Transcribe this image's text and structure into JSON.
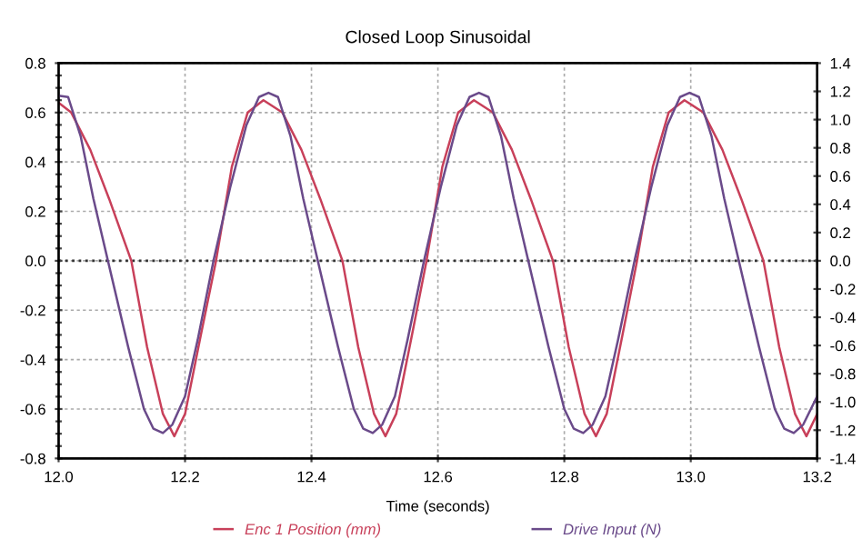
{
  "chart_data": {
    "type": "line",
    "title": "Closed Loop Sinusoidal",
    "xlabel": "Time (seconds)",
    "xlim": [
      12.0,
      13.2
    ],
    "xticks": [
      {
        "value": 12,
        "label": "12.0"
      },
      12.2,
      12.4,
      12.6,
      12.8,
      {
        "value": 13,
        "label": "13.0"
      },
      13.2
    ],
    "ylim": [
      -0.8,
      0.8
    ],
    "yticks": [
      -0.8,
      {
        "value": -0.75,
        "label": null
      },
      {
        "value": -0.7,
        "label": null
      },
      {
        "value": -0.65,
        "label": null
      },
      -0.6,
      {
        "value": -0.55,
        "label": null
      },
      {
        "value": -0.5,
        "label": null
      },
      {
        "value": -0.45,
        "label": null
      },
      -0.4,
      {
        "value": -0.35,
        "label": null
      },
      {
        "value": -0.3,
        "label": null
      },
      {
        "value": -0.25,
        "label": null
      },
      -0.2,
      {
        "value": -0.15,
        "label": null
      },
      {
        "value": -0.1,
        "label": null
      },
      {
        "value": -0.05,
        "label": null
      },
      {
        "value": 0,
        "label": "0.0"
      },
      {
        "value": 0.05,
        "label": null
      },
      {
        "value": 0.1,
        "label": null
      },
      {
        "value": 0.15,
        "label": null
      },
      0.2,
      {
        "value": 0.25,
        "label": null
      },
      {
        "value": 0.3,
        "label": null
      },
      {
        "value": 0.35,
        "label": null
      },
      0.4,
      {
        "value": 0.45,
        "label": null
      },
      {
        "value": 0.5,
        "label": null
      },
      {
        "value": 0.55,
        "label": null
      },
      0.6,
      {
        "value": 0.65,
        "label": null
      },
      {
        "value": 0.7,
        "label": null
      },
      {
        "value": 0.75,
        "label": null
      },
      0.8
    ],
    "y2lim": [
      -1.4,
      1.4
    ],
    "y2ticks": [
      -1.4,
      -1.2,
      {
        "value": -1,
        "label": "-1.0"
      },
      -0.8,
      -0.6,
      -0.4,
      -0.2,
      {
        "value": 0,
        "label": "0.0"
      },
      0.2,
      0.4,
      0.6,
      0.8,
      {
        "value": 1,
        "label": "1.0"
      },
      1.2,
      1.4
    ],
    "grid": true,
    "legend": "bottom",
    "marker": "none",
    "line_style": "solid",
    "ref_lines": [
      {
        "axis": "y",
        "value": 0.0,
        "color": "#333333",
        "line_style": "dotted"
      }
    ],
    "series": [
      {
        "name": "Enc 1 Position (mm)",
        "color": "#c8405a",
        "x": [
          12.0,
          12.02,
          12.05,
          12.08,
          12.115,
          12.14,
          12.165,
          12.183,
          12.2,
          12.225,
          12.249,
          12.274,
          12.299,
          12.324,
          12.354,
          12.384,
          12.414,
          12.449,
          12.474,
          12.499,
          12.517,
          12.534,
          12.559,
          12.582,
          12.607,
          12.632,
          12.657,
          12.687,
          12.717,
          12.747,
          12.782,
          12.807,
          12.832,
          12.85,
          12.867,
          12.892,
          12.915,
          12.94,
          12.965,
          12.99,
          13.02,
          13.05,
          13.08,
          13.115,
          13.14,
          13.165,
          13.183,
          13.2
        ],
        "values": [
          0.64,
          0.6,
          0.45,
          0.25,
          0.0,
          -0.35,
          -0.62,
          -0.71,
          -0.62,
          -0.3,
          0.0,
          0.38,
          0.6,
          0.65,
          0.6,
          0.45,
          0.25,
          0.0,
          -0.35,
          -0.62,
          -0.71,
          -0.62,
          -0.3,
          0.0,
          0.38,
          0.6,
          0.65,
          0.6,
          0.45,
          0.25,
          0.0,
          -0.35,
          -0.62,
          -0.71,
          -0.62,
          -0.3,
          0.0,
          0.38,
          0.6,
          0.65,
          0.6,
          0.45,
          0.25,
          0.0,
          -0.35,
          -0.62,
          -0.71,
          -0.62
        ]
      },
      {
        "name": "Drive Input (N)",
        "color": "#6a4a8a",
        "axis": "y2",
        "x": [
          12.0,
          12.015,
          12.035,
          12.055,
          12.078,
          12.11,
          12.135,
          12.15,
          12.165,
          12.18,
          12.2,
          12.22,
          12.245,
          12.272,
          12.297,
          12.317,
          12.332,
          12.347,
          12.367,
          12.387,
          12.41,
          12.442,
          12.467,
          12.482,
          12.497,
          12.512,
          12.532,
          12.552,
          12.578,
          12.605,
          12.63,
          12.65,
          12.665,
          12.68,
          12.7,
          12.72,
          12.743,
          12.775,
          12.8,
          12.815,
          12.83,
          12.845,
          12.865,
          12.885,
          12.911,
          12.938,
          12.963,
          12.983,
          12.998,
          13.013,
          13.033,
          13.053,
          13.076,
          13.108,
          13.133,
          13.148,
          13.163,
          13.178,
          13.2
        ],
        "values": [
          1.17,
          1.16,
          0.88,
          0.44,
          0.0,
          -0.61,
          -1.05,
          -1.19,
          -1.22,
          -1.16,
          -0.96,
          -0.56,
          0.0,
          0.53,
          0.96,
          1.16,
          1.19,
          1.16,
          0.88,
          0.44,
          0.0,
          -0.61,
          -1.05,
          -1.19,
          -1.22,
          -1.16,
          -0.96,
          -0.56,
          0.0,
          0.53,
          0.96,
          1.16,
          1.19,
          1.16,
          0.88,
          0.44,
          0.0,
          -0.61,
          -1.05,
          -1.19,
          -1.22,
          -1.16,
          -0.96,
          -0.56,
          0.0,
          0.53,
          0.96,
          1.16,
          1.19,
          1.16,
          0.88,
          0.44,
          0.0,
          -0.61,
          -1.05,
          -1.19,
          -1.22,
          -1.16,
          -0.96
        ]
      }
    ]
  }
}
